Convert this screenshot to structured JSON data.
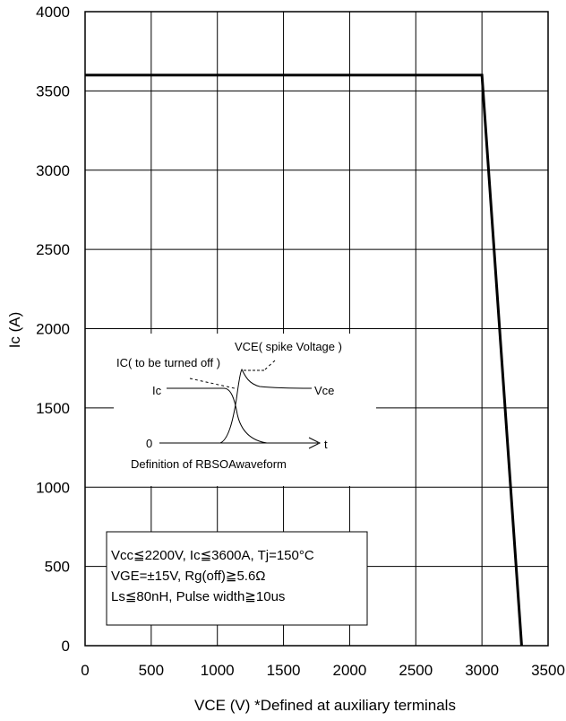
{
  "chart_data": {
    "type": "line",
    "title": "",
    "xlabel": "VCE (V) *Defined at auxiliary terminals",
    "ylabel": "Ic (A)",
    "xlim": [
      0,
      3500
    ],
    "ylim": [
      0,
      4000
    ],
    "xticks": [
      0,
      500,
      1000,
      1500,
      2000,
      2500,
      3000,
      3500
    ],
    "yticks": [
      0,
      500,
      1000,
      1500,
      2000,
      2500,
      3000,
      3500,
      4000
    ],
    "xtick_labels": [
      "0",
      "500",
      "1000",
      "1500",
      "2000",
      "2500",
      "3000",
      "3500"
    ],
    "ytick_labels": [
      "0",
      "500",
      "1000",
      "1500",
      "2000",
      "2500",
      "3000",
      "3500",
      "4000"
    ],
    "grid": true,
    "series": [
      {
        "x": [
          0,
          3000,
          3300
        ],
        "y": [
          3600,
          3600,
          0
        ]
      }
    ],
    "inset": {
      "title": "Definition of RBSOAwaveform",
      "labels": {
        "ic_turned_off": "IC( to be turned off )",
        "vce_spike": "VCE( spike Voltage )",
        "ic": "Ic",
        "vce": "Vce",
        "zero": "0",
        "t": "t"
      }
    },
    "conditions": [
      "Vcc≦2200V, Ic≦3600A, Tj=150°C",
      "VGE=±15V, Rg(off)≧5.6Ω",
      "Ls≦80nH, Pulse width≧10us"
    ]
  }
}
